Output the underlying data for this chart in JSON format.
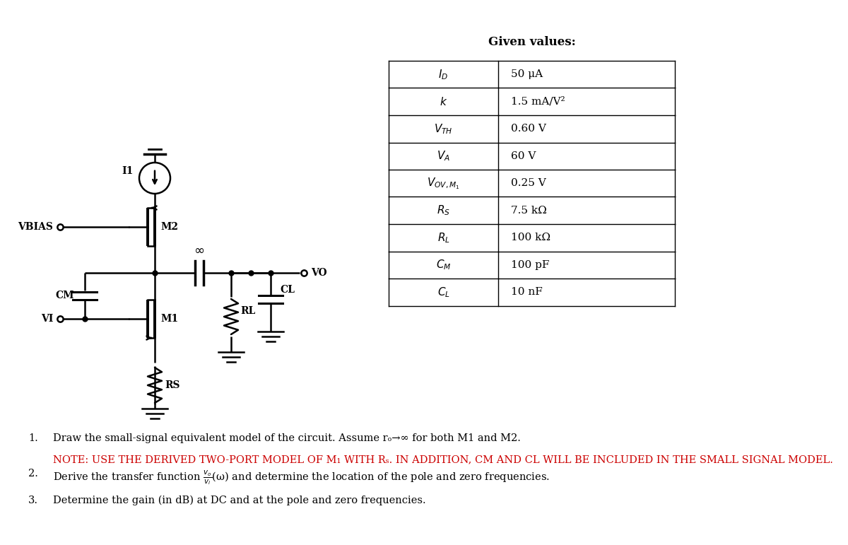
{
  "bg_color": "#ffffff",
  "fig_width": 12.0,
  "fig_height": 7.71,
  "table_title": "Given values:",
  "table_rows": [
    [
      "I_D",
      "50 μA"
    ],
    [
      "k",
      "1.5 mA/V²"
    ],
    [
      "V_TH",
      "0.60 V"
    ],
    [
      "V_A",
      "60 V"
    ],
    [
      "V_OV_M1",
      "0.25 V"
    ],
    [
      "R_S",
      "7.5 kΩ"
    ],
    [
      "R_L",
      "100 kΩ"
    ],
    [
      "C_M",
      "100 pF"
    ],
    [
      "C_L",
      "10 nF"
    ]
  ],
  "circuit_color": "#000000",
  "label_color_black": "#000000",
  "label_color_red": "#cc0000"
}
